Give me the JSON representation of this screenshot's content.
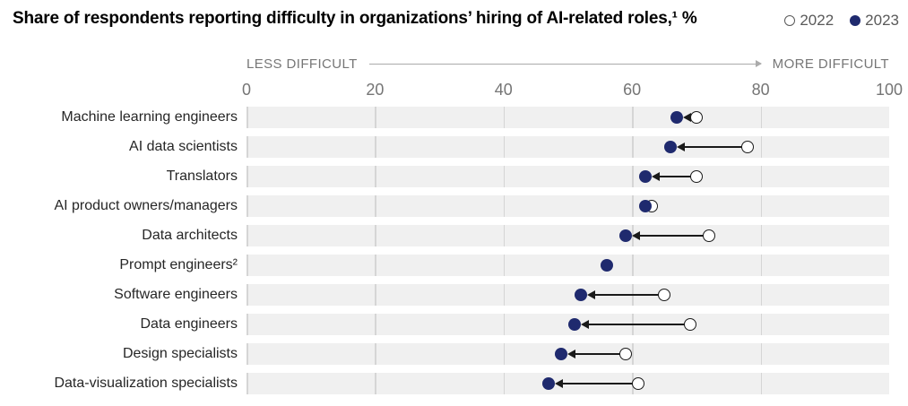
{
  "header": {
    "title": "Share of respondents reporting difficulty in organizations’ hiring of AI-related roles,¹ %"
  },
  "axis": {
    "caption_left": "LESS DIFFICULT",
    "caption_right": "MORE DIFFICULT"
  },
  "chart_data": {
    "type": "scatter",
    "subtype": "dumbbell-dot-plot",
    "title": "Share of respondents reporting difficulty in organizations’ hiring of AI-related roles,¹ %",
    "unit": "%",
    "xlim": [
      0,
      100
    ],
    "x_ticks": [
      0,
      20,
      40,
      60,
      80,
      100
    ],
    "gridline_ticks": [
      0,
      20,
      40,
      60,
      80
    ],
    "grid": "vertical-on-row-bands",
    "legend_position": "top-right",
    "categories": [
      "Machine learning engineers",
      "AI data scientists",
      "Translators",
      "AI product owners/managers",
      "Data architects",
      "Prompt engineers²",
      "Software engineers",
      "Data engineers",
      "Design specialists",
      "Data-visualization specialists"
    ],
    "series": [
      {
        "name": "2022",
        "marker": "open-circle",
        "values": [
          70,
          78,
          70,
          63,
          72,
          null,
          65,
          69,
          59,
          61
        ]
      },
      {
        "name": "2023",
        "marker": "filled-circle",
        "values": [
          67,
          66,
          62,
          62,
          59,
          56,
          52,
          51,
          49,
          47
        ]
      }
    ],
    "annotations": "black arrows point from each 2022 value leftward to its 2023 value"
  },
  "colors": {
    "filled_dot": "#1f2a6e",
    "open_dot_stroke": "#1a1a1a",
    "arrow": "#1a1a1a",
    "band": "#f0f0f0",
    "gridline": "#d5d5d5",
    "axis_text": "#757575",
    "label_text": "#262626",
    "legend_text": "#595959",
    "title_text": "#000000"
  }
}
